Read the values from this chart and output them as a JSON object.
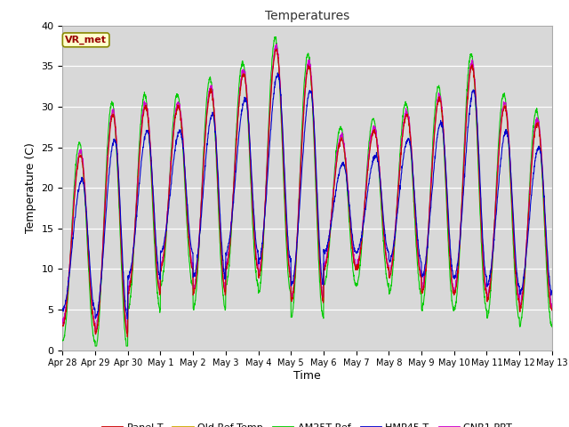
{
  "title": "Temperatures",
  "xlabel": "Time",
  "ylabel": "Temperature (C)",
  "ylim": [
    0,
    40
  ],
  "background_color": "#ffffff",
  "plot_bg_color": "#d8d8d8",
  "series": {
    "Panel T": "#cc0000",
    "Old Ref Temp": "#ccaa00",
    "AM25T Ref": "#00cc00",
    "HMP45 T": "#0000cc",
    "CNR1 PRT": "#cc00cc"
  },
  "annotation_text": "VR_met",
  "annotation_color": "#990000",
  "annotation_bg": "#ffffcc",
  "tick_labels": [
    "Apr 28",
    "Apr 29",
    "Apr 30",
    "May 1",
    "May 2",
    "May 3",
    "May 4",
    "May 5",
    "May 6",
    "May 7",
    "May 8",
    "May 9",
    "May 10",
    "May 11",
    "May 12",
    "May 13"
  ],
  "num_days": 15,
  "points_per_day": 144,
  "day_mins": [
    3,
    2,
    7,
    10,
    7,
    10,
    9,
    6,
    10,
    10,
    9,
    7,
    7,
    6,
    5
  ],
  "day_maxs": [
    24,
    29,
    30,
    30,
    32,
    34,
    37,
    35,
    26,
    27,
    29,
    31,
    35,
    30,
    28
  ]
}
